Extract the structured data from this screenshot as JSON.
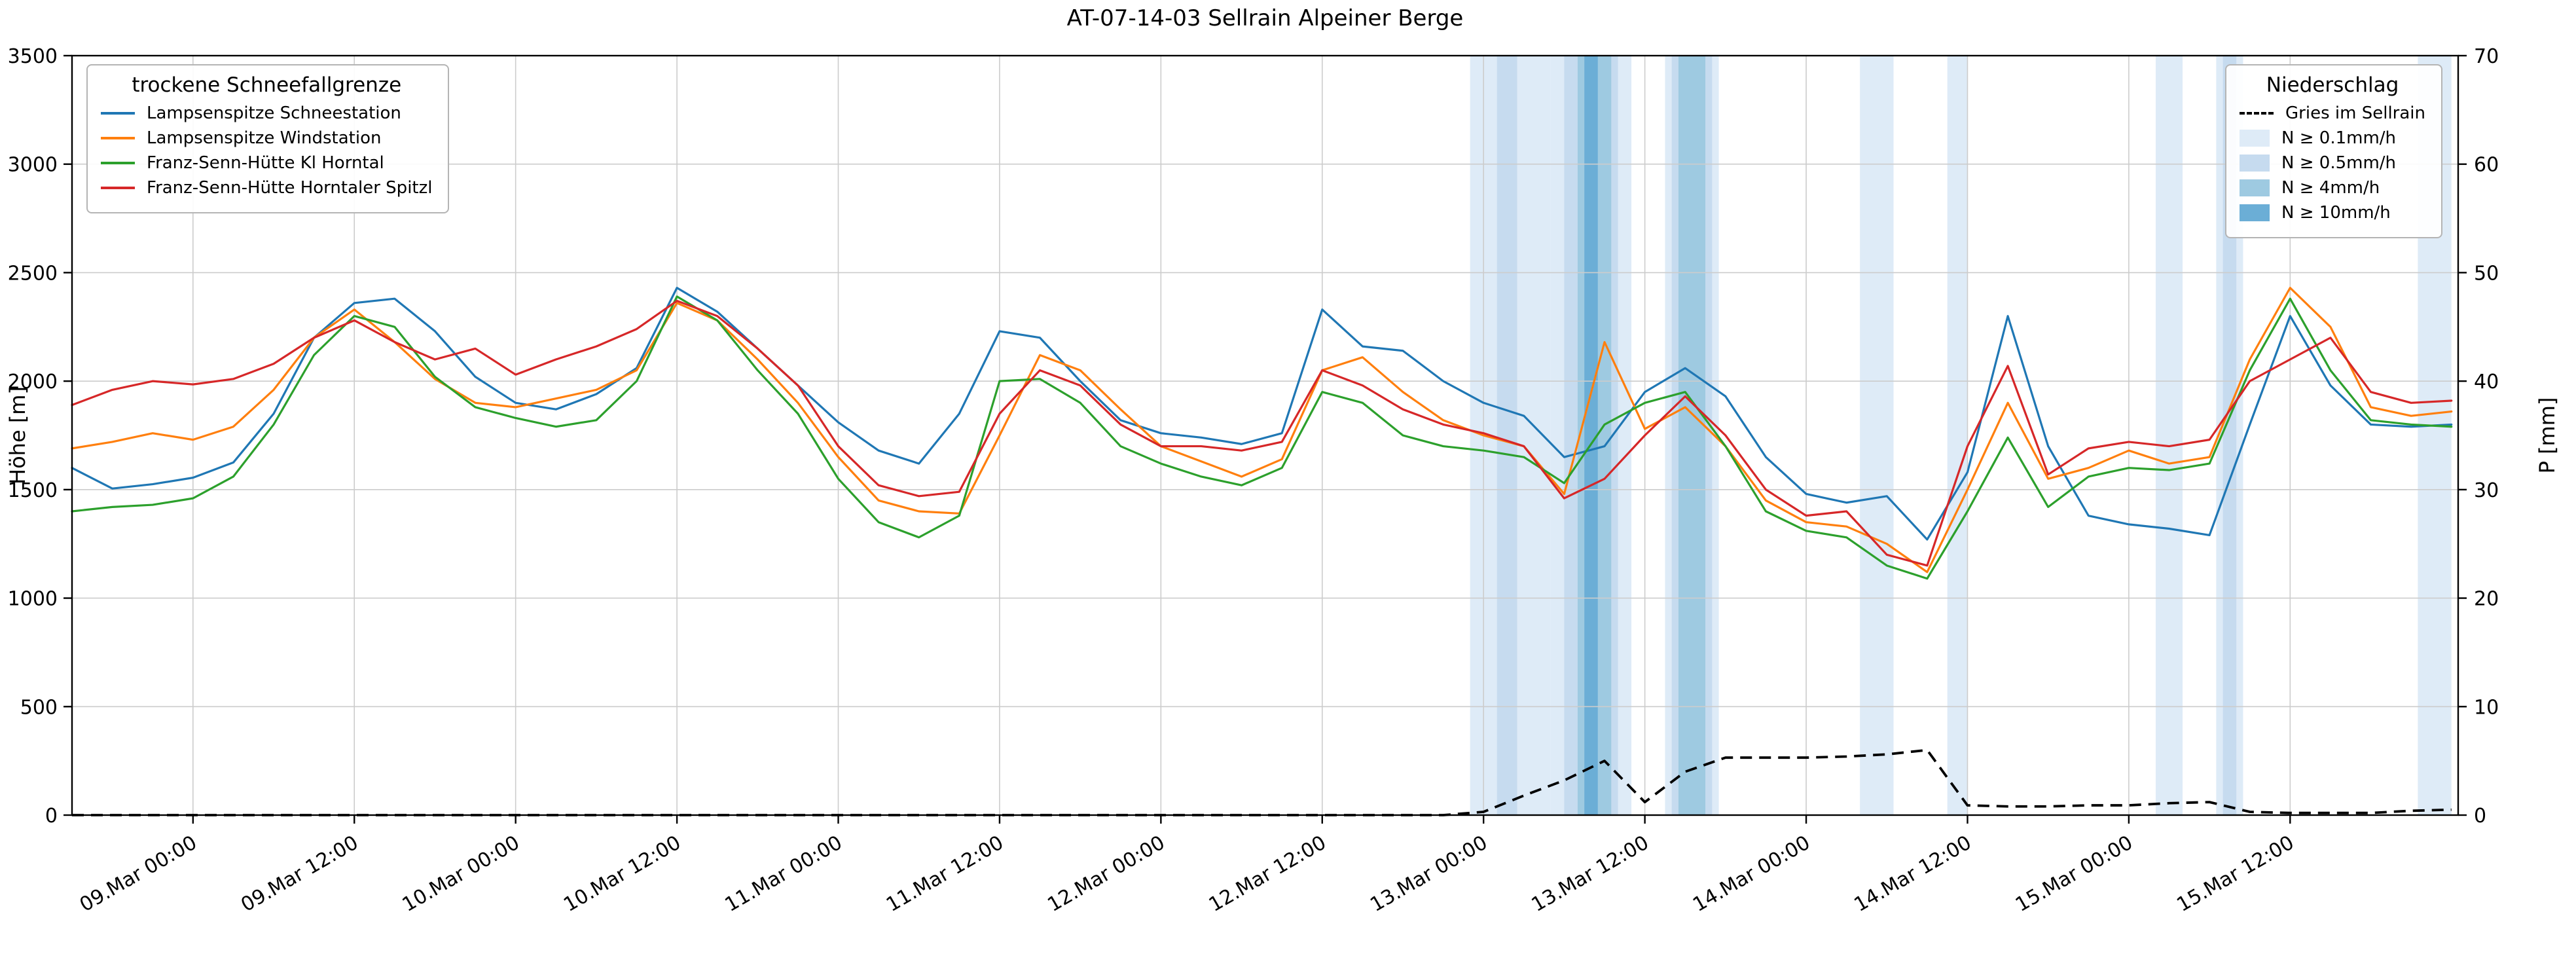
{
  "chart_data": {
    "type": "line",
    "title": "AT-07-14-03 Sellrain Alpeiner Berge",
    "ylabel_left": "Höhe [m]",
    "ylabel_right": "P [mm]",
    "ylim_left": [
      0,
      3500
    ],
    "ylim_right": [
      0,
      70
    ],
    "yticks_left": [
      0,
      500,
      1000,
      1500,
      2000,
      2500,
      3000,
      3500
    ],
    "yticks_right": [
      0,
      10,
      20,
      30,
      40,
      50,
      60,
      70
    ],
    "grid": true,
    "xlim_hours": [
      -9,
      168.5
    ],
    "xticks": [
      {
        "h": 0,
        "label": "09.Mar 00:00"
      },
      {
        "h": 12,
        "label": "09.Mar 12:00"
      },
      {
        "h": 24,
        "label": "10.Mar 00:00"
      },
      {
        "h": 36,
        "label": "10.Mar 12:00"
      },
      {
        "h": 48,
        "label": "11.Mar 00:00"
      },
      {
        "h": 60,
        "label": "11.Mar 12:00"
      },
      {
        "h": 72,
        "label": "12.Mar 00:00"
      },
      {
        "h": 84,
        "label": "12.Mar 12:00"
      },
      {
        "h": 96,
        "label": "13.Mar 00:00"
      },
      {
        "h": 108,
        "label": "13.Mar 12:00"
      },
      {
        "h": 120,
        "label": "14.Mar 00:00"
      },
      {
        "h": 132,
        "label": "14.Mar 12:00"
      },
      {
        "h": 144,
        "label": "15.Mar 00:00"
      },
      {
        "h": 156,
        "label": "15.Mar 12:00"
      }
    ],
    "hours": [
      -9,
      -6,
      -3,
      0,
      3,
      6,
      9,
      12,
      15,
      18,
      21,
      24,
      27,
      30,
      33,
      36,
      39,
      42,
      45,
      48,
      51,
      54,
      57,
      60,
      63,
      66,
      69,
      72,
      75,
      78,
      81,
      84,
      87,
      90,
      93,
      96,
      99,
      102,
      105,
      108,
      111,
      114,
      117,
      120,
      123,
      126,
      129,
      132,
      135,
      138,
      141,
      144,
      147,
      150,
      153,
      156,
      159,
      162,
      165,
      168
    ],
    "legend_snowline_title": "trockene Schneefallgrenze",
    "legend_precip_title": "Niederschlag",
    "series": [
      {
        "name": "Lampsenspitze Schneestation",
        "color": "#1f77b4",
        "values": [
          1600,
          1505,
          1525,
          1555,
          1625,
          1850,
          2200,
          2360,
          2380,
          2230,
          2020,
          1900,
          1870,
          1940,
          2060,
          2430,
          2320,
          2150,
          1980,
          1810,
          1680,
          1620,
          1850,
          2230,
          2200,
          2000,
          1820,
          1760,
          1740,
          1710,
          1760,
          2330,
          2160,
          2140,
          2000,
          1900,
          1840,
          1650,
          1700,
          1950,
          2060,
          1930,
          1650,
          1480,
          1440,
          1470,
          1270,
          1580,
          2300,
          1700,
          1380,
          1340,
          1320,
          1290,
          1800,
          2300,
          1980,
          1800,
          1790,
          1800
        ]
      },
      {
        "name": "Lampsenspitze Windstation",
        "color": "#ff7f0e",
        "values": [
          1690,
          1720,
          1760,
          1730,
          1790,
          1960,
          2200,
          2330,
          2180,
          2010,
          1900,
          1880,
          1920,
          1960,
          2050,
          2360,
          2280,
          2100,
          1900,
          1650,
          1450,
          1400,
          1390,
          1750,
          2120,
          2050,
          1870,
          1700,
          1630,
          1560,
          1640,
          2050,
          2110,
          1950,
          1820,
          1750,
          1700,
          1480,
          2180,
          1780,
          1880,
          1700,
          1450,
          1350,
          1330,
          1250,
          1120,
          1500,
          1900,
          1550,
          1600,
          1680,
          1620,
          1650,
          2100,
          2430,
          2250,
          1880,
          1840,
          1860
        ]
      },
      {
        "name": "Franz-Senn-Hütte Kl Horntal",
        "color": "#2ca02c",
        "values": [
          1400,
          1420,
          1430,
          1460,
          1560,
          1800,
          2120,
          2300,
          2250,
          2020,
          1880,
          1830,
          1790,
          1820,
          2000,
          2390,
          2280,
          2050,
          1850,
          1550,
          1350,
          1280,
          1380,
          2000,
          2010,
          1900,
          1700,
          1620,
          1560,
          1520,
          1600,
          1950,
          1900,
          1750,
          1700,
          1680,
          1650,
          1530,
          1800,
          1900,
          1950,
          1700,
          1400,
          1310,
          1280,
          1150,
          1090,
          1400,
          1740,
          1420,
          1560,
          1600,
          1590,
          1620,
          2050,
          2380,
          2050,
          1820,
          1800,
          1790
        ]
      },
      {
        "name": "Franz-Senn-Hütte Horntaler Spitzl",
        "color": "#d62728",
        "values": [
          1890,
          1960,
          2000,
          1985,
          2010,
          2080,
          2200,
          2280,
          2180,
          2100,
          2150,
          2030,
          2100,
          2160,
          2240,
          2370,
          2300,
          2150,
          1980,
          1700,
          1520,
          1470,
          1490,
          1850,
          2050,
          1980,
          1800,
          1700,
          1700,
          1680,
          1720,
          2050,
          1980,
          1870,
          1800,
          1760,
          1700,
          1460,
          1550,
          1750,
          1930,
          1750,
          1500,
          1380,
          1400,
          1200,
          1150,
          1700,
          2070,
          1570,
          1690,
          1720,
          1700,
          1730,
          2000,
          2100,
          2200,
          1950,
          1900,
          1910
        ]
      }
    ],
    "precip_line": {
      "name": "Gries im Sellrain",
      "color": "#000000",
      "dashed": true,
      "values_mm": [
        0,
        0,
        0,
        0,
        0,
        0,
        0,
        0,
        0,
        0,
        0,
        0,
        0,
        0,
        0,
        0,
        0,
        0,
        0,
        0,
        0,
        0,
        0,
        0,
        0,
        0,
        0,
        0,
        0,
        0,
        0,
        0,
        0,
        0,
        0,
        0.3,
        1.8,
        3.2,
        5,
        1.2,
        4,
        5.3,
        5.3,
        5.3,
        5.4,
        5.6,
        6,
        0.9,
        0.8,
        0.8,
        0.9,
        0.9,
        1.1,
        1.2,
        0.3,
        0.2,
        0.2,
        0.2,
        0.4,
        0.5
      ]
    },
    "precip_bands": {
      "levels": [
        {
          "label": "N ≥ 0.1mm/h",
          "color": "#deebf7"
        },
        {
          "label": "N ≥ 0.5mm/h",
          "color": "#c6dbef"
        },
        {
          "label": "N ≥ 4mm/h",
          "color": "#9ecae1"
        },
        {
          "label": "N ≥ 10mm/h",
          "color": "#6baed6"
        }
      ],
      "spans": [
        {
          "from_h": 95,
          "to_h": 101,
          "level": 0
        },
        {
          "from_h": 97,
          "to_h": 98.5,
          "level": 1
        },
        {
          "from_h": 101,
          "to_h": 107,
          "level": 0
        },
        {
          "from_h": 102,
          "to_h": 106,
          "level": 1
        },
        {
          "from_h": 103,
          "to_h": 105.5,
          "level": 2
        },
        {
          "from_h": 103.5,
          "to_h": 104.5,
          "level": 3
        },
        {
          "from_h": 109.5,
          "to_h": 113.5,
          "level": 0
        },
        {
          "from_h": 110,
          "to_h": 113,
          "level": 1
        },
        {
          "from_h": 110.5,
          "to_h": 112.5,
          "level": 2
        },
        {
          "from_h": 124,
          "to_h": 126.5,
          "level": 0
        },
        {
          "from_h": 130.5,
          "to_h": 132,
          "level": 0
        },
        {
          "from_h": 146,
          "to_h": 148,
          "level": 0
        },
        {
          "from_h": 150.5,
          "to_h": 152.5,
          "level": 0
        },
        {
          "from_h": 151,
          "to_h": 152,
          "level": 1
        },
        {
          "from_h": 165.5,
          "to_h": 168,
          "level": 0
        }
      ]
    }
  }
}
